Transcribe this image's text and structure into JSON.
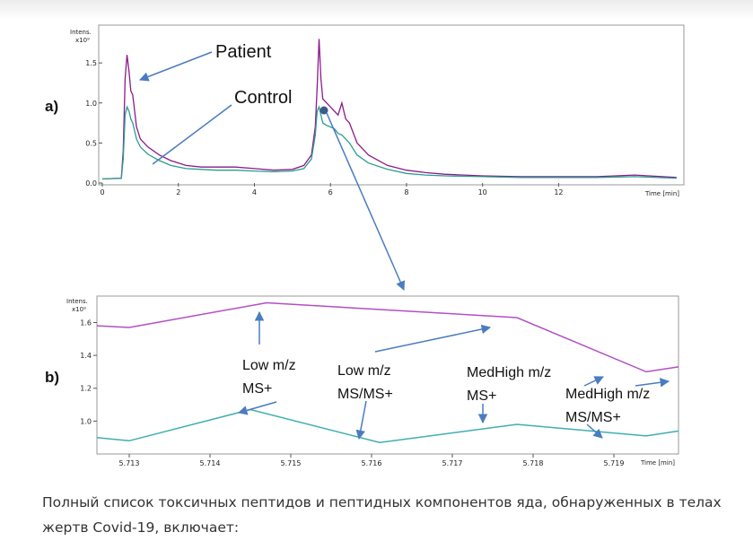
{
  "chart_data": [
    {
      "type": "line",
      "panel_label": "a)",
      "ylabel": "Intens.",
      "yunit": "x10⁹",
      "xlabel": "Time [min]",
      "xlim": [
        0,
        15.2
      ],
      "ylim": [
        0,
        1.95
      ],
      "xticks": [
        0,
        2,
        4,
        6,
        8,
        10,
        12
      ],
      "yticks": [
        0.0,
        0.5,
        1.0,
        1.5
      ],
      "ytick_labels": [
        "0.0",
        "0.5",
        "1.0",
        "1.5"
      ],
      "series": [
        {
          "name": "Patient",
          "color": "#8b1a8b",
          "x": [
            0,
            0.5,
            0.55,
            0.6,
            0.65,
            0.7,
            0.75,
            0.8,
            0.85,
            0.9,
            1.0,
            1.2,
            1.5,
            1.8,
            2.2,
            2.6,
            3.0,
            3.5,
            4.0,
            4.5,
            5.0,
            5.3,
            5.5,
            5.6,
            5.65,
            5.7,
            5.75,
            5.8,
            5.9,
            6.0,
            6.1,
            6.2,
            6.3,
            6.4,
            6.5,
            6.7,
            7.0,
            7.5,
            8.0,
            8.5,
            9.0,
            10.0,
            11.0,
            12.0,
            13.0,
            14.0,
            15.1
          ],
          "y": [
            0.05,
            0.06,
            0.4,
            1.3,
            1.6,
            1.4,
            1.15,
            1.1,
            0.9,
            0.7,
            0.55,
            0.45,
            0.35,
            0.28,
            0.22,
            0.2,
            0.2,
            0.2,
            0.18,
            0.16,
            0.17,
            0.22,
            0.35,
            0.7,
            1.2,
            1.8,
            1.3,
            1.05,
            1.0,
            0.95,
            0.9,
            0.85,
            1.0,
            0.8,
            0.75,
            0.5,
            0.35,
            0.22,
            0.16,
            0.13,
            0.11,
            0.09,
            0.08,
            0.08,
            0.08,
            0.1,
            0.07
          ]
        },
        {
          "name": "Control",
          "color": "#2a9d8f",
          "x": [
            0,
            0.5,
            0.55,
            0.6,
            0.65,
            0.7,
            0.75,
            0.8,
            0.85,
            0.9,
            1.0,
            1.2,
            1.5,
            1.8,
            2.2,
            2.6,
            3.0,
            3.5,
            4.0,
            4.5,
            5.0,
            5.3,
            5.5,
            5.6,
            5.65,
            5.7,
            5.75,
            5.8,
            5.9,
            6.0,
            6.1,
            6.2,
            6.3,
            6.4,
            6.5,
            6.7,
            7.0,
            7.5,
            8.0,
            8.5,
            9.0,
            10.0,
            11.0,
            12.0,
            13.0,
            14.0,
            15.1
          ],
          "y": [
            0.05,
            0.06,
            0.3,
            0.85,
            0.95,
            0.9,
            0.8,
            0.75,
            0.65,
            0.55,
            0.45,
            0.36,
            0.28,
            0.22,
            0.18,
            0.17,
            0.16,
            0.16,
            0.15,
            0.14,
            0.15,
            0.18,
            0.3,
            0.6,
            0.9,
            0.95,
            0.85,
            0.75,
            0.72,
            0.7,
            0.68,
            0.62,
            0.6,
            0.55,
            0.5,
            0.35,
            0.25,
            0.17,
            0.12,
            0.1,
            0.09,
            0.08,
            0.07,
            0.07,
            0.07,
            0.08,
            0.06
          ]
        }
      ],
      "annotations": [
        {
          "text": "Patient",
          "target_x": 0.7,
          "target_y": 1.4
        },
        {
          "text": "Control",
          "target_x": 1.5,
          "target_y": 0.3
        }
      ]
    },
    {
      "type": "line",
      "panel_label": "b)",
      "ylabel": "Intens.",
      "yunit": "x10⁹",
      "xlabel": "Time [min]",
      "xlim": [
        5.7126,
        5.7198
      ],
      "ylim": [
        0.8,
        1.75
      ],
      "xticks": [
        5.713,
        5.714,
        5.715,
        5.716,
        5.717,
        5.718,
        5.719
      ],
      "yticks": [
        1.0,
        1.2,
        1.4,
        1.6
      ],
      "ytick_labels": [
        "1.0",
        "1.2",
        "1.4",
        "1.6"
      ],
      "series": [
        {
          "name": "Patient",
          "color": "#b34fc4",
          "x": [
            5.7126,
            5.713,
            5.7147,
            5.7178,
            5.7194,
            5.7198
          ],
          "y": [
            1.58,
            1.57,
            1.72,
            1.63,
            1.3,
            1.33
          ]
        },
        {
          "name": "Control",
          "color": "#40aeb0",
          "x": [
            5.7126,
            5.713,
            5.7145,
            5.7161,
            5.7178,
            5.7194,
            5.7198
          ],
          "y": [
            0.9,
            0.88,
            1.07,
            0.87,
            0.98,
            0.91,
            0.94
          ]
        }
      ],
      "annotations": [
        {
          "text": "Low m/z MS+",
          "lines": [
            "Low m/z",
            "MS+"
          ]
        },
        {
          "text": "Low m/z MS/MS+",
          "lines": [
            "Low m/z",
            "MS/MS+"
          ]
        },
        {
          "text": "MedHigh m/z MS+",
          "lines": [
            "MedHigh m/z",
            "MS+"
          ]
        },
        {
          "text": "MedHigh m/z MS/MS+",
          "lines": [
            "MedHigh m/z",
            "MS/MS+"
          ]
        }
      ]
    }
  ],
  "labels": {
    "annot_a_patient": "Patient",
    "annot_a_control": "Control",
    "annot_b1_l1": "Low m/z",
    "annot_b1_l2": "MS+",
    "annot_b2_l1": "Low m/z",
    "annot_b2_l2": "MS/MS+",
    "annot_b3_l1": "MedHigh m/z",
    "annot_b3_l2": "MS+",
    "annot_b4_l1": "MedHigh m/z",
    "annot_b4_l2": "MS/MS+"
  },
  "caption": "Полный список токсичных пептидов и пептидных компонентов яда, обнаруженных в телах жертв Covid-19, включает:"
}
